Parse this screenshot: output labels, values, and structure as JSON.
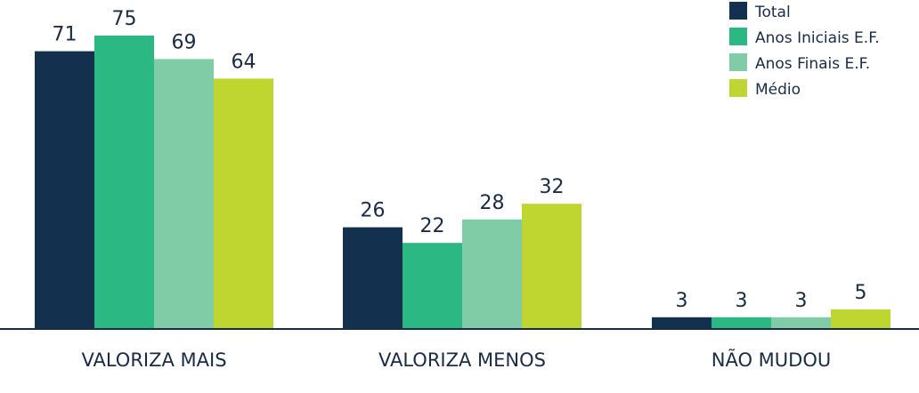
{
  "chart_data": {
    "type": "bar",
    "categories": [
      "VALORIZA MAIS",
      "VALORIZA MENOS",
      "NÃO MUDOU"
    ],
    "series": [
      {
        "name": "Total",
        "values": [
          71,
          26,
          3
        ],
        "color": "#14304f"
      },
      {
        "name": "Anos Iniciais E.F.",
        "values": [
          75,
          22,
          3
        ],
        "color": "#2bb882"
      },
      {
        "name": "Anos Finais E.F.",
        "values": [
          69,
          28,
          3
        ],
        "color": "#80cca6"
      },
      {
        "name": "Médio",
        "values": [
          64,
          32,
          5
        ],
        "color": "#bfd631"
      }
    ],
    "ylim": [
      0,
      75
    ],
    "legend": "top-right",
    "grid": false,
    "data_labels": true
  }
}
